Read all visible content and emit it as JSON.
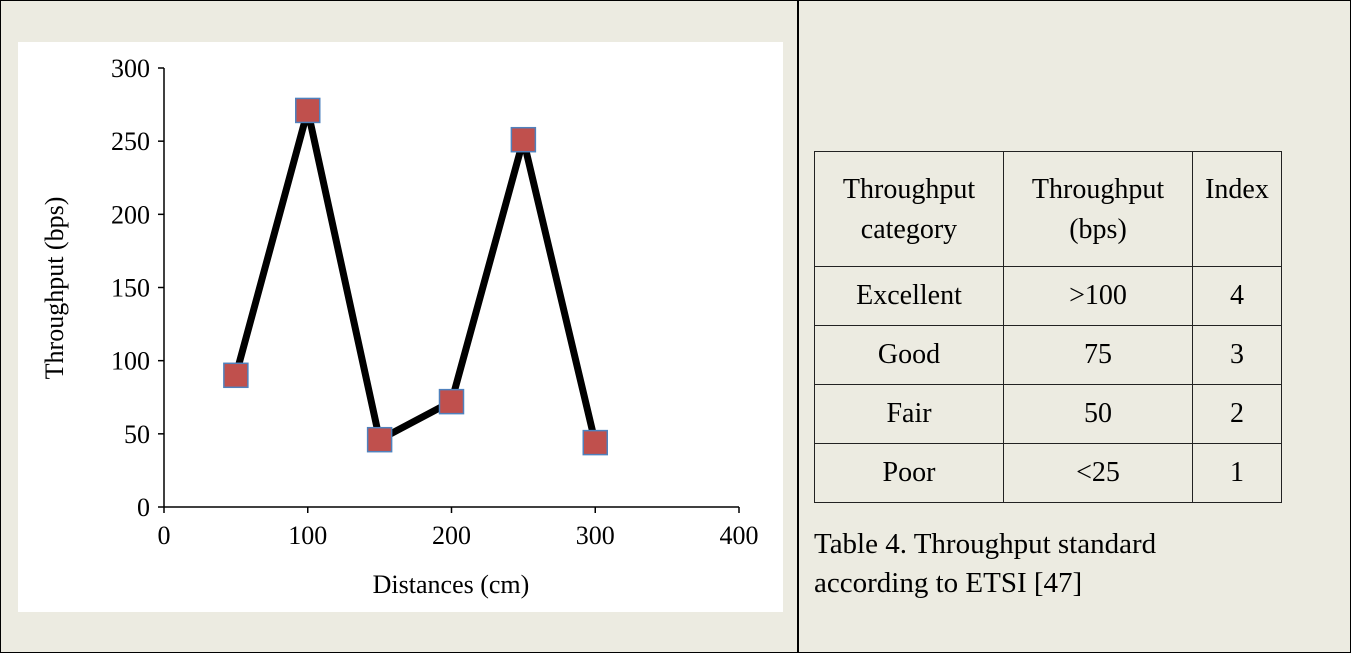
{
  "chart_data": {
    "type": "line",
    "x_label": "Distances (cm)",
    "y_label": "Throughput (bps)",
    "x": [
      50,
      100,
      150,
      200,
      250,
      300
    ],
    "series": [
      {
        "color": "#000000",
        "marker_color": "#c0504d",
        "marker_edge": "#4f81bd",
        "values": [
          90,
          271,
          46,
          72,
          251,
          44
        ]
      }
    ],
    "xlim": [
      0,
      400
    ],
    "xticks": [
      0,
      100,
      200,
      300,
      400
    ],
    "ylim": [
      0,
      300
    ],
    "yticks": [
      0,
      50,
      100,
      150,
      200,
      250,
      300
    ],
    "grid": false
  },
  "table": {
    "header": [
      "Throughput category",
      "Throughput (bps)",
      "Index"
    ],
    "rows": [
      [
        "Excellent",
        ">100",
        4
      ],
      [
        "Good",
        "75",
        3
      ],
      [
        "Fair",
        "50",
        2
      ],
      [
        "Poor",
        "<25",
        1
      ]
    ],
    "caption": "Table 4. Throughput standard according to ETSI [47]"
  }
}
